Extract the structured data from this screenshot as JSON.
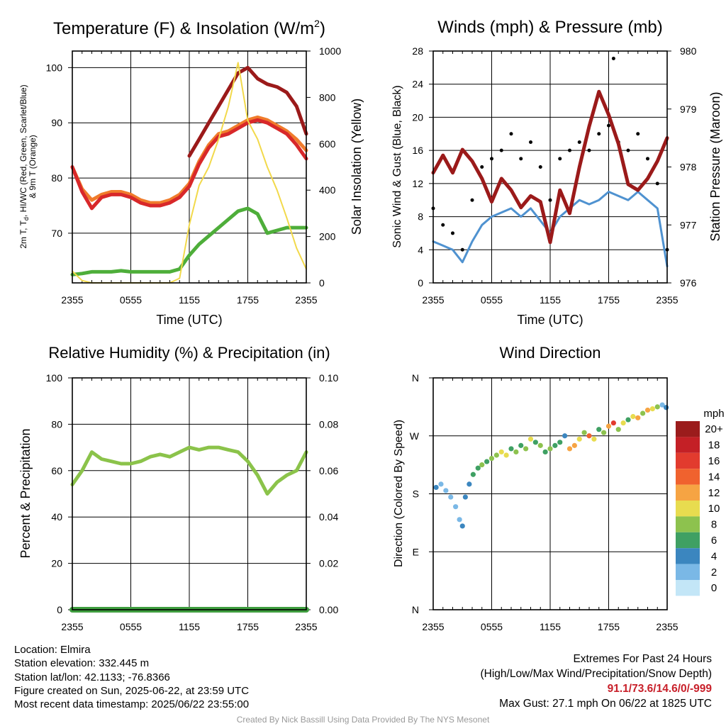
{
  "chart_data": [
    {
      "id": "temperature",
      "type": "line",
      "title": "Temperature (F) & Insolation (W/m",
      "title_sup": "2",
      "title_end": ")",
      "xlabel": "Time (UTC)",
      "ylabel_lines": [
        "2m T, T",
        "d",
        ", HI/WC (Red, Green, Scarlet/Blue)",
        "& 9m T (Orange)"
      ],
      "y2label": "Solar Insolation (Yellow)",
      "x_ticks": [
        "2355",
        "0555",
        "1155",
        "1755",
        "2355"
      ],
      "x_tick_hours": [
        0,
        6,
        12,
        18,
        24
      ],
      "ylim": [
        61,
        103
      ],
      "yticks": [
        70,
        80,
        90,
        100
      ],
      "y2lim": [
        0,
        1000
      ],
      "y2ticks": [
        0,
        200,
        400,
        600,
        800,
        1000
      ],
      "hours": [
        0,
        1,
        2,
        3,
        4,
        5,
        6,
        7,
        8,
        9,
        10,
        11,
        12,
        13,
        14,
        15,
        16,
        17,
        18,
        19,
        20,
        21,
        22,
        23,
        24
      ],
      "series": [
        {
          "color": "#f07c2c",
          "axis": "left",
          "values": [
            82,
            78,
            76,
            77,
            77.5,
            77.5,
            77,
            76,
            75.5,
            75.5,
            76,
            77,
            79,
            83,
            86,
            88,
            88.5,
            89.5,
            90.5,
            91,
            90.5,
            89.5,
            88.5,
            87,
            85
          ]
        },
        {
          "color": "#d8282a",
          "axis": "left",
          "values": [
            82,
            77.5,
            74.5,
            76.5,
            77,
            77,
            76.5,
            75.5,
            75,
            75,
            75.5,
            76.5,
            78.5,
            82.5,
            85.5,
            87.5,
            88,
            89,
            90,
            90.5,
            90,
            89,
            88,
            86,
            83.5
          ]
        },
        {
          "color": "#9b1a1a",
          "axis": "left",
          "partial": [
            12,
            24
          ],
          "values": [
            null,
            null,
            null,
            null,
            null,
            null,
            null,
            null,
            null,
            null,
            null,
            null,
            84,
            87,
            90,
            93,
            96,
            99,
            100,
            98,
            97,
            96.5,
            95.5,
            93,
            88
          ]
        },
        {
          "color": "#4eae3a",
          "axis": "left",
          "values": [
            62.5,
            62.7,
            63,
            63,
            63,
            63.2,
            63,
            63,
            63,
            63,
            63,
            63.5,
            66,
            68,
            69.5,
            71,
            72.5,
            74,
            74.5,
            73.5,
            70,
            70.5,
            71,
            71,
            71
          ]
        },
        {
          "color": "#f2d94b",
          "axis": "right",
          "values": [
            50,
            10,
            0,
            0,
            0,
            0,
            0,
            0,
            0,
            0,
            0,
            20,
            250,
            420,
            500,
            620,
            760,
            950,
            700,
            620,
            500,
            400,
            280,
            150,
            60
          ]
        }
      ]
    },
    {
      "id": "winds",
      "type": "line",
      "title": "Winds (mph) & Pressure (mb)",
      "xlabel": "Time (UTC)",
      "ylabel": "Sonic Wind & Gust (Blue, Black)",
      "y2label": "Station Pressure (Maroon)",
      "x_ticks": [
        "2355",
        "0555",
        "1155",
        "1755",
        "2355"
      ],
      "x_tick_hours": [
        0,
        6,
        12,
        18,
        24
      ],
      "ylim": [
        0,
        28
      ],
      "yticks": [
        0,
        4,
        8,
        12,
        16,
        20,
        24,
        28
      ],
      "y2lim": [
        976,
        980
      ],
      "y2ticks": [
        976,
        977,
        978,
        979,
        980
      ],
      "hours": [
        0,
        1,
        2,
        3,
        4,
        5,
        6,
        7,
        8,
        9,
        10,
        11,
        12,
        13,
        14,
        15,
        16,
        17,
        18,
        19,
        20,
        21,
        22,
        23,
        24
      ],
      "series": [
        {
          "color": "#4f92d0",
          "axis": "left",
          "values": [
            5,
            4.5,
            4,
            2.5,
            5,
            7,
            8,
            8.5,
            9,
            8,
            9,
            7.5,
            6,
            8,
            9,
            10,
            9.5,
            10,
            11,
            10.5,
            10,
            11,
            10,
            9,
            2
          ]
        },
        {
          "color": "#9b1a1a",
          "axis": "right",
          "values": [
            977.9,
            978.2,
            977.9,
            978.3,
            978.1,
            977.8,
            977.4,
            977.8,
            977.6,
            977.3,
            977.5,
            977.4,
            976.7,
            977.6,
            977.2,
            978.0,
            978.7,
            979.3,
            978.9,
            978.4,
            977.7,
            977.6,
            977.8,
            978.1,
            978.5
          ]
        }
      ],
      "gusts": {
        "color": "#000000",
        "hours": [
          0,
          1,
          2,
          3,
          4,
          5,
          6,
          7,
          8,
          9,
          10,
          11,
          12,
          13,
          14,
          15,
          16,
          17,
          18,
          19,
          20,
          21,
          22,
          23,
          24
        ],
        "values": [
          9,
          7,
          6,
          4,
          10,
          14,
          15,
          16,
          18,
          15,
          17,
          14,
          10,
          15,
          16,
          17,
          16,
          18,
          19,
          17,
          16,
          18,
          15,
          12,
          4
        ]
      },
      "max_gust_point": {
        "hour": 18.5,
        "value": 27.1
      }
    },
    {
      "id": "humidity",
      "type": "line",
      "title": "Relative Humidity (%) & Precipitation (in)",
      "ylabel": "Percent & Precipitation",
      "x_ticks": [
        "2355",
        "0555",
        "1155",
        "1755",
        "2355"
      ],
      "x_tick_hours": [
        0,
        6,
        12,
        18,
        24
      ],
      "ylim": [
        0,
        100
      ],
      "yticks": [
        0,
        20,
        40,
        60,
        80,
        100
      ],
      "y2lim": [
        0,
        0.1
      ],
      "y2ticks": [
        "0.00",
        "0.02",
        "0.04",
        "0.06",
        "0.08",
        "0.10"
      ],
      "hours": [
        0,
        1,
        2,
        3,
        4,
        5,
        6,
        7,
        8,
        9,
        10,
        11,
        12,
        13,
        14,
        15,
        16,
        17,
        18,
        19,
        20,
        21,
        22,
        23,
        24
      ],
      "series": [
        {
          "color": "#8bc34a",
          "axis": "left",
          "values": [
            54,
            60,
            68,
            65,
            64,
            63,
            63,
            64,
            66,
            67,
            66,
            68,
            70,
            69,
            70,
            70,
            69,
            68,
            64,
            58,
            50,
            55,
            58,
            60,
            68
          ]
        },
        {
          "color": "#3f9e3f",
          "axis": "right",
          "values": [
            0,
            0,
            0,
            0,
            0,
            0,
            0,
            0,
            0,
            0,
            0,
            0,
            0,
            0,
            0,
            0,
            0,
            0,
            0,
            0,
            0,
            0,
            0,
            0,
            0
          ]
        }
      ]
    },
    {
      "id": "wind_direction",
      "type": "scatter",
      "title": "Wind Direction",
      "ylabel": "Direction (Colored By Speed)",
      "x_ticks": [
        "2355",
        "0555",
        "1155",
        "1755",
        "2355"
      ],
      "x_tick_hours": [
        0,
        6,
        12,
        18,
        24
      ],
      "ylim": [
        0,
        360
      ],
      "y_ticks": [
        "N",
        "E",
        "S",
        "W",
        "N"
      ],
      "y_tick_degrees": [
        0,
        90,
        180,
        270,
        360
      ],
      "points": [
        {
          "hour": 0.3,
          "dir": 190,
          "speed": 4
        },
        {
          "hour": 0.8,
          "dir": 195,
          "speed": 3
        },
        {
          "hour": 1.3,
          "dir": 185,
          "speed": 2
        },
        {
          "hour": 1.8,
          "dir": 175,
          "speed": 2
        },
        {
          "hour": 2.3,
          "dir": 160,
          "speed": 2
        },
        {
          "hour": 2.7,
          "dir": 140,
          "speed": 3
        },
        {
          "hour": 3.0,
          "dir": 130,
          "speed": 4
        },
        {
          "hour": 3.3,
          "dir": 175,
          "speed": 4
        },
        {
          "hour": 3.7,
          "dir": 195,
          "speed": 5
        },
        {
          "hour": 4.1,
          "dir": 210,
          "speed": 6
        },
        {
          "hour": 4.6,
          "dir": 220,
          "speed": 7
        },
        {
          "hour": 5.0,
          "dir": 225,
          "speed": 8
        },
        {
          "hour": 5.5,
          "dir": 230,
          "speed": 6
        },
        {
          "hour": 6.0,
          "dir": 235,
          "speed": 9
        },
        {
          "hour": 6.5,
          "dir": 240,
          "speed": 8
        },
        {
          "hour": 7.0,
          "dir": 245,
          "speed": 10
        },
        {
          "hour": 7.5,
          "dir": 240,
          "speed": 11
        },
        {
          "hour": 8.0,
          "dir": 250,
          "speed": 7
        },
        {
          "hour": 8.5,
          "dir": 245,
          "speed": 9
        },
        {
          "hour": 9.0,
          "dir": 255,
          "speed": 6
        },
        {
          "hour": 9.5,
          "dir": 250,
          "speed": 8
        },
        {
          "hour": 10.0,
          "dir": 265,
          "speed": 10
        },
        {
          "hour": 10.5,
          "dir": 260,
          "speed": 6
        },
        {
          "hour": 11.0,
          "dir": 255,
          "speed": 9
        },
        {
          "hour": 11.5,
          "dir": 245,
          "speed": 7
        },
        {
          "hour": 12.0,
          "dir": 250,
          "speed": 8
        },
        {
          "hour": 12.5,
          "dir": 255,
          "speed": 6
        },
        {
          "hour": 13.0,
          "dir": 260,
          "speed": 7
        },
        {
          "hour": 13.5,
          "dir": 270,
          "speed": 5
        },
        {
          "hour": 14.0,
          "dir": 250,
          "speed": 12
        },
        {
          "hour": 14.5,
          "dir": 255,
          "speed": 13
        },
        {
          "hour": 15.0,
          "dir": 265,
          "speed": 10
        },
        {
          "hour": 15.5,
          "dir": 275,
          "speed": 8
        },
        {
          "hour": 16.0,
          "dir": 270,
          "speed": 14
        },
        {
          "hour": 16.5,
          "dir": 265,
          "speed": 11
        },
        {
          "hour": 17.0,
          "dir": 280,
          "speed": 7
        },
        {
          "hour": 17.5,
          "dir": 275,
          "speed": 9
        },
        {
          "hour": 18.0,
          "dir": 285,
          "speed": 12
        },
        {
          "hour": 18.5,
          "dir": 290,
          "speed": 16
        },
        {
          "hour": 19.0,
          "dir": 280,
          "speed": 8
        },
        {
          "hour": 19.5,
          "dir": 290,
          "speed": 10
        },
        {
          "hour": 20.0,
          "dir": 295,
          "speed": 6
        },
        {
          "hour": 20.5,
          "dir": 300,
          "speed": 11
        },
        {
          "hour": 21.0,
          "dir": 298,
          "speed": 13
        },
        {
          "hour": 21.5,
          "dir": 305,
          "speed": 9
        },
        {
          "hour": 22.0,
          "dir": 310,
          "speed": 12
        },
        {
          "hour": 22.5,
          "dir": 312,
          "speed": 10
        },
        {
          "hour": 23.0,
          "dir": 315,
          "speed": 8
        },
        {
          "hour": 23.5,
          "dir": 318,
          "speed": 3
        },
        {
          "hour": 23.9,
          "dir": 314,
          "speed": 4
        }
      ]
    }
  ],
  "legend": {
    "title": "mph",
    "entries": [
      {
        "label": "20+",
        "color": "#9b1c1c"
      },
      {
        "label": "18",
        "color": "#c42026"
      },
      {
        "label": "16",
        "color": "#e23b2e"
      },
      {
        "label": "14",
        "color": "#f0622e"
      },
      {
        "label": "12",
        "color": "#f6a443"
      },
      {
        "label": "10",
        "color": "#e8dc4f"
      },
      {
        "label": "8",
        "color": "#8dc24e"
      },
      {
        "label": "6",
        "color": "#3fa063"
      },
      {
        "label": "4",
        "color": "#3b86bf"
      },
      {
        "label": "2",
        "color": "#7ab8e6"
      },
      {
        "label": "0",
        "color": "#c3e6f7"
      }
    ]
  },
  "info": {
    "location": "Location: Elmira",
    "elevation": "Station elevation: 332.445 m",
    "latlon": "Station lat/lon: 42.1133; -76.8366",
    "created": "Figure created on Sun, 2025-06-22, at 23:59 UTC",
    "recent": "Most recent data timestamp: 2025/06/22 23:55:00"
  },
  "extremes": {
    "title": "Extremes For Past 24 Hours",
    "subtitle": "(High/Low/Max Wind/Precipitation/Snow Depth)",
    "values": "91.1/73.6/14.6/0/-999",
    "values_color": "#c8202a",
    "max_gust": "Max Gust: 27.1 mph On 06/22 at 1825 UTC"
  },
  "credit": "Created By Nick Bassill Using Data Provided By The NYS Mesonet"
}
